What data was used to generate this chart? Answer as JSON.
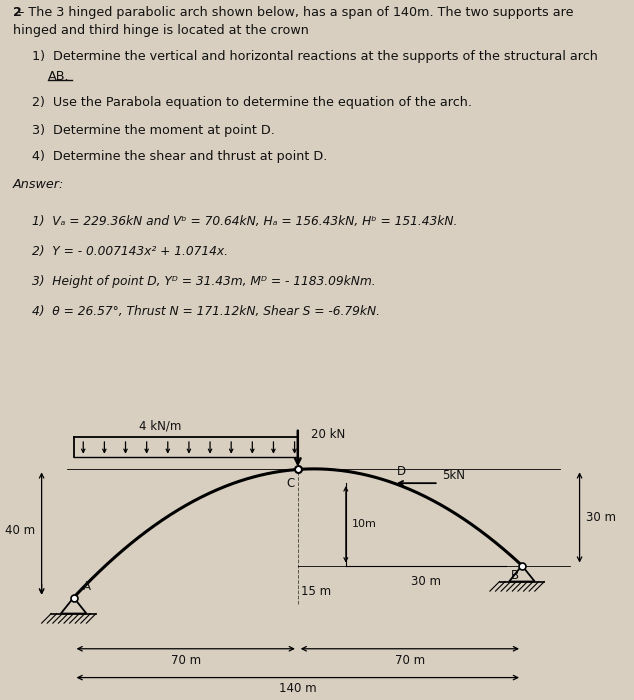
{
  "bg_color": "#d8cfc0",
  "text_color": "#111111",
  "title_bold": "2",
  "title_rest": " – The 3 hinged parabolic arch shown below, has a span of 140m. The two supports are",
  "title_line2": "hinged and third hinge is located at the crown",
  "q1": "1)  Determine the vertical and horizontal reactions at the supports of the structural arch",
  "q1b": "AB.",
  "q2": "2)  Use the Parabola equation to determine the equation of the arch.",
  "q3": "3)  Determine the moment at point D.",
  "q4": "4)  Determine the shear and thrust at point D.",
  "answer_label": "Answer:",
  "ans1": "1)  V",
  "ans1_A": "A",
  "ans1_mid": " = 229.36kN and V",
  "ans1_b": "b",
  "ans1_end": " = 70.64kN, H",
  "ans1_a2": "a",
  "ans1_end2": " = 156.43kN, H",
  "ans1_b2": "b",
  "ans1_end3": " = 151.43kN.",
  "ans2": "2)  Y = - 0.007143x² + 1.0714x.",
  "ans3": "3)  Height of point D, Y",
  "ans3_D": "D",
  "ans3_mid": " = 31.43m, M",
  "ans3_D2": "D",
  "ans3_end": " = - 1183.09kNm.",
  "ans4": "4)  θ = 26.57°, Thrust N = 171.12kN, Shear S = -6.79kN.",
  "dist_load_label": "4 kN/m",
  "point_load_label": "20 kN",
  "label_5kN": "5kN",
  "label_30m_right": "30 m",
  "label_40m": "40 m",
  "label_A": "A",
  "label_B": "B",
  "label_C": "C",
  "label_D": "D",
  "label_10m": "10m",
  "label_15m": "15 m",
  "label_30m_horiz": "30 m",
  "label_70m_left": "70 m",
  "label_70m_right": "70 m",
  "label_140m": "140 m"
}
